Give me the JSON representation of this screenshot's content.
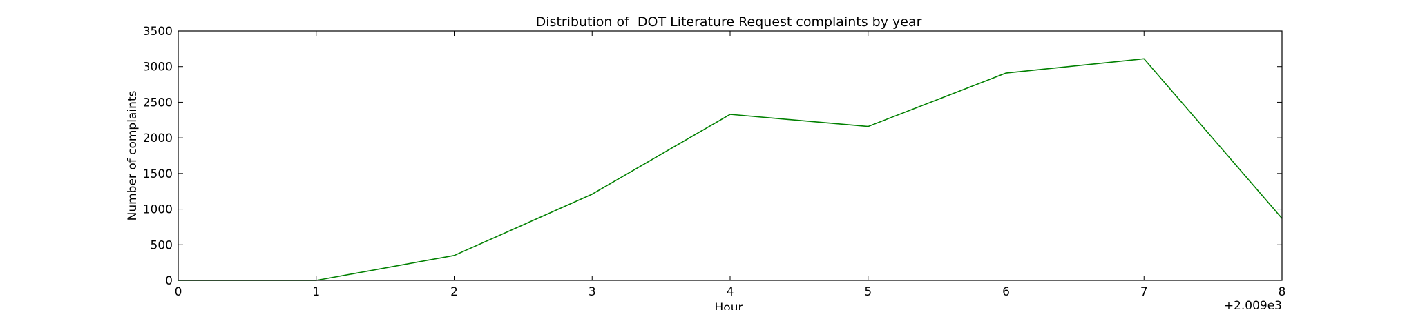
{
  "chart_data": {
    "type": "line",
    "title": "Distribution of  DOT Literature Request complaints by year",
    "xlabel": "Hour",
    "ylabel": "Number of complaints",
    "x_offset_label": "+2.009e3",
    "xlim": [
      0,
      8
    ],
    "ylim": [
      0,
      3500
    ],
    "x_ticks": [
      0,
      1,
      2,
      3,
      4,
      5,
      6,
      7,
      8
    ],
    "y_ticks": [
      0,
      500,
      1000,
      1500,
      2000,
      2500,
      3000,
      3500
    ],
    "grid": false,
    "series": [
      {
        "color": "#008000",
        "x": [
          0,
          1,
          2,
          3,
          4,
          5,
          6,
          7,
          8
        ],
        "y": [
          0,
          0,
          350,
          1210,
          2330,
          2160,
          2910,
          3110,
          870
        ]
      }
    ]
  }
}
